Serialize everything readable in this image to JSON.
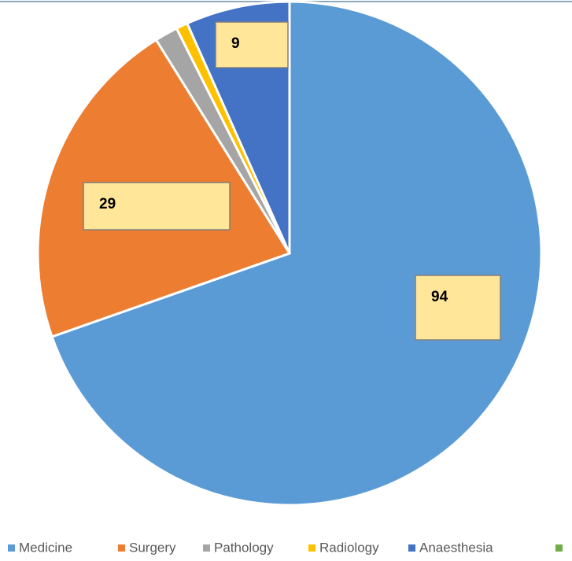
{
  "chart_data": {
    "type": "pie",
    "categories": [
      "Medicine",
      "Surgery",
      "Pathology",
      "Radiology",
      "Anaesthesia",
      null
    ],
    "values": [
      94,
      29,
      2,
      1,
      9,
      0
    ],
    "colors": [
      "#5b9bd5",
      "#ed7d31",
      "#a5a5a5",
      "#ffc000",
      "#4472c4",
      "#70ad47"
    ],
    "legend": "bottom"
  }
}
